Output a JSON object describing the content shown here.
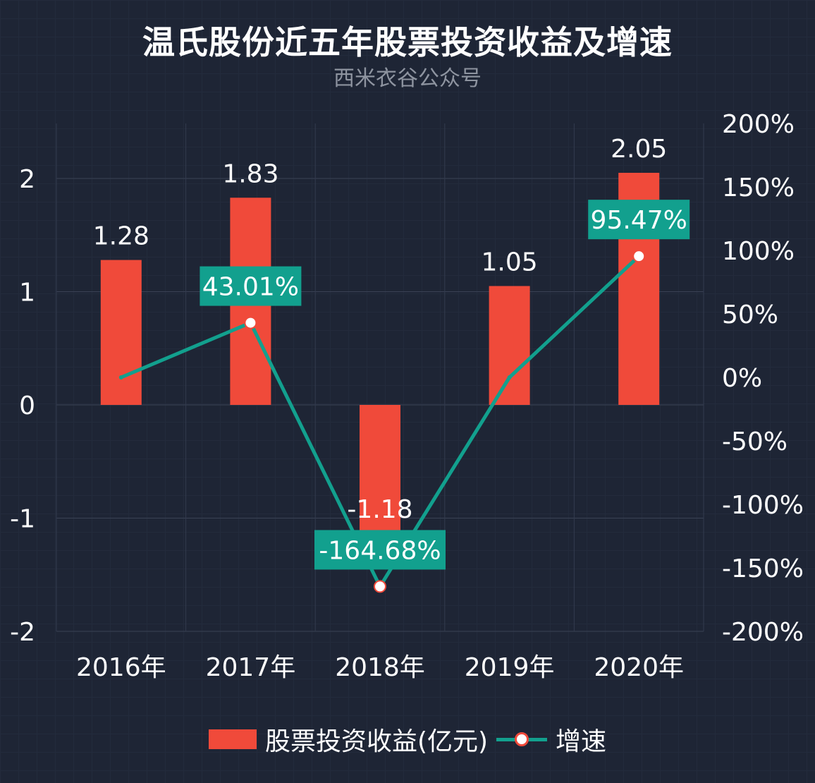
{
  "title": "温氏股份近五年股票投资收益及增速",
  "subtitle": "西米衣谷公众号",
  "colors": {
    "background": "#1e2535",
    "bar": "#f04a3a",
    "line": "#12a08e",
    "label_box": "#12a08e",
    "text": "#ffffff"
  },
  "legend": {
    "bar_label": "股票投资收益(亿元)",
    "line_label": "增速"
  },
  "chart_data": {
    "type": "bar",
    "categories": [
      "2016年",
      "2017年",
      "2018年",
      "2019年",
      "2020年"
    ],
    "series": [
      {
        "name": "股票投资收益(亿元)",
        "type": "bar",
        "axis": "left",
        "values": [
          1.28,
          1.83,
          -1.18,
          1.05,
          2.05
        ],
        "labels": [
          "1.28",
          "1.83",
          "-1.18",
          "1.05",
          "2.05"
        ]
      },
      {
        "name": "增速",
        "type": "line",
        "axis": "right",
        "values": [
          0,
          43.01,
          -164.68,
          0,
          95.47
        ],
        "labels": [
          "",
          "43.01%",
          "-164.68%",
          "",
          "95.47%"
        ]
      }
    ],
    "y_left": {
      "min": -2,
      "max": 2,
      "ticks": [
        2,
        1,
        0,
        -1,
        -2
      ],
      "tick_labels": [
        "2",
        "1",
        "0",
        "-1",
        "-2"
      ]
    },
    "y_right": {
      "min": -200,
      "max": 200,
      "ticks": [
        200,
        150,
        100,
        50,
        0,
        -50,
        -100,
        -150,
        -200
      ],
      "tick_labels": [
        "200%",
        "150%",
        "100%",
        "50%",
        "0%",
        "-50%",
        "-100%",
        "-150%",
        "-200%"
      ]
    },
    "legend_position": "bottom",
    "grid": true
  }
}
